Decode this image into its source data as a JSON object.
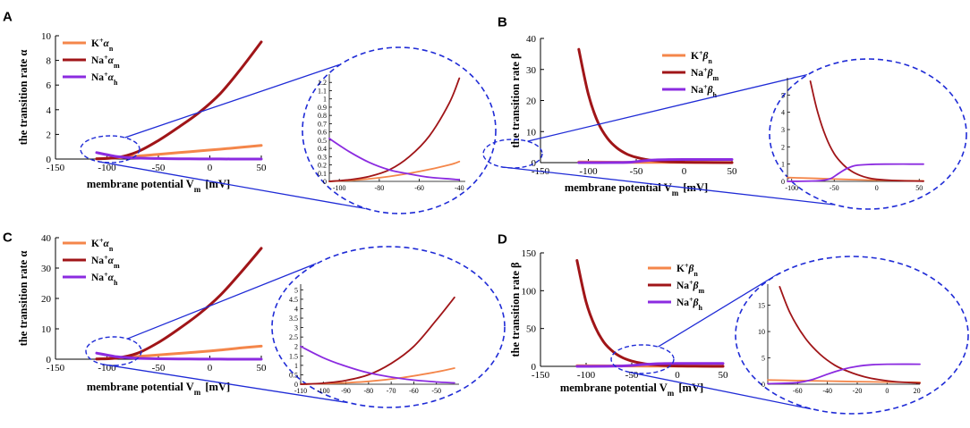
{
  "colors": {
    "k_n": "#f4864a",
    "na_m": "#a01518",
    "na_h": "#8b2be0",
    "zoom": "#1f2bd6",
    "axis": "#000000"
  },
  "chart_data": [
    {
      "panel": "A",
      "type": "line",
      "ylabel": "the transition rate α",
      "xlabel": "membrane potential V_m [mV]",
      "xlim": [
        -150,
        50
      ],
      "ylim": [
        0,
        10
      ],
      "xticks": [
        -150,
        -100,
        -50,
        0,
        50
      ],
      "yticks": [
        0,
        2,
        4,
        6,
        8,
        10
      ],
      "legend_position": "top-left",
      "series": [
        {
          "key": "k_n",
          "legend_main": "K",
          "legend_sup": "+",
          "legend_greek": "α",
          "legend_sub": "n",
          "x": [
            -110,
            -90,
            -70,
            -50,
            -30,
            -10,
            10,
            30,
            50
          ],
          "y": [
            0.03,
            0.1,
            0.25,
            0.38,
            0.52,
            0.66,
            0.8,
            0.95,
            1.1
          ]
        },
        {
          "key": "na_m",
          "legend_main": "Na",
          "legend_sup": "+",
          "legend_greek": "α",
          "legend_sub": "m",
          "x": [
            -110,
            -90,
            -70,
            -50,
            -30,
            -10,
            10,
            30,
            50
          ],
          "y": [
            0.02,
            0.12,
            0.6,
            1.5,
            2.6,
            3.8,
            5.3,
            7.3,
            9.5
          ]
        },
        {
          "key": "na_h",
          "legend_main": "Na",
          "legend_sup": "+",
          "legend_greek": "α",
          "legend_sub": "h",
          "x": [
            -110,
            -90,
            -70,
            -50,
            -30,
            -10,
            10,
            30,
            50
          ],
          "y": [
            0.52,
            0.2,
            0.08,
            0.04,
            0.02,
            0.01,
            0.01,
            0.0,
            0.0
          ]
        }
      ],
      "inset": {
        "xlim": [
          -105,
          -37
        ],
        "ylim": [
          0,
          1.3
        ],
        "xticks": [
          -100,
          -80,
          -60,
          -40
        ],
        "yticks": [
          0,
          0.1,
          0.2,
          0.3,
          0.4,
          0.5,
          0.6,
          0.7,
          0.8,
          0.9,
          1,
          1.1,
          1.2
        ],
        "series": [
          {
            "key": "k_n",
            "x": [
              -105,
              -90,
              -75,
              -60,
              -45,
              -40
            ],
            "y": [
              0.0,
              0.02,
              0.06,
              0.12,
              0.2,
              0.24
            ]
          },
          {
            "key": "na_m",
            "x": [
              -105,
              -95,
              -85,
              -75,
              -65,
              -55,
              -45,
              -40
            ],
            "y": [
              0.0,
              0.02,
              0.06,
              0.14,
              0.3,
              0.55,
              0.95,
              1.25
            ]
          },
          {
            "key": "na_h",
            "x": [
              -105,
              -95,
              -85,
              -75,
              -65,
              -55,
              -45,
              -40
            ],
            "y": [
              0.52,
              0.36,
              0.23,
              0.14,
              0.09,
              0.05,
              0.03,
              0.02
            ]
          }
        ]
      }
    },
    {
      "panel": "B",
      "type": "line",
      "ylabel": "the transition rate β",
      "xlabel": "membrane potential V_m [mV]",
      "xlim": [
        -150,
        50
      ],
      "ylim": [
        0,
        40
      ],
      "xticks": [
        -150,
        -100,
        -50,
        0,
        50
      ],
      "yticks": [
        0,
        10,
        20,
        30,
        40
      ],
      "legend_position": "top-center",
      "series": [
        {
          "key": "k_n",
          "legend_main": "K",
          "legend_sup": "+",
          "legend_greek": "β",
          "legend_sub": "n",
          "x": [
            -110,
            -80,
            -50,
            -20,
            10,
            50
          ],
          "y": [
            0.2,
            0.15,
            0.1,
            0.08,
            0.05,
            0.03
          ]
        },
        {
          "key": "na_m",
          "legend_main": "Na",
          "legend_sup": "+",
          "legend_greek": "β",
          "legend_sub": "m",
          "x": [
            -110,
            -100,
            -90,
            -80,
            -70,
            -60,
            -50,
            -40,
            -30,
            -10,
            20,
            50
          ],
          "y": [
            36.5,
            22,
            13,
            7.8,
            4.7,
            2.8,
            1.7,
            1.0,
            0.6,
            0.2,
            0.05,
            0.01
          ]
        },
        {
          "key": "na_h",
          "legend_main": "Na",
          "legend_sup": "+",
          "legend_greek": "β",
          "legend_sub": "h",
          "x": [
            -110,
            -70,
            -55,
            -45,
            -35,
            -20,
            0,
            50
          ],
          "y": [
            0.0,
            0.02,
            0.15,
            0.5,
            0.8,
            0.95,
            1.0,
            1.0
          ]
        }
      ],
      "inset": {
        "xlim": [
          -105,
          55
        ],
        "ylim": [
          0,
          6
        ],
        "xticks": [
          -100,
          -50,
          0,
          50
        ],
        "yticks": [
          0,
          1,
          2,
          3,
          4,
          5
        ],
        "series": [
          {
            "key": "k_n",
            "x": [
              -105,
              -70,
              -40,
              -10,
              20,
              55
            ],
            "y": [
              0.22,
              0.17,
              0.12,
              0.08,
              0.05,
              0.03
            ]
          },
          {
            "key": "na_m",
            "x": [
              -78,
              -70,
              -60,
              -50,
              -40,
              -30,
              -20,
              -10,
              0,
              20,
              55
            ],
            "y": [
              5.8,
              4.1,
              2.6,
              1.6,
              1.0,
              0.6,
              0.35,
              0.2,
              0.12,
              0.05,
              0.01
            ]
          },
          {
            "key": "na_h",
            "x": [
              -105,
              -70,
              -55,
              -45,
              -35,
              -25,
              -10,
              10,
              55
            ],
            "y": [
              0.0,
              0.03,
              0.15,
              0.45,
              0.75,
              0.92,
              0.98,
              1.0,
              1.0
            ]
          }
        ]
      }
    },
    {
      "panel": "C",
      "type": "line",
      "ylabel": "the transition rate α",
      "xlabel": "membrane potential V_m [mV]",
      "xlim": [
        -150,
        50
      ],
      "ylim": [
        0,
        40
      ],
      "xticks": [
        -150,
        -100,
        -50,
        0,
        50
      ],
      "yticks": [
        0,
        10,
        20,
        30,
        40
      ],
      "legend_position": "top-left",
      "series": [
        {
          "key": "k_n",
          "legend_main": "K",
          "legend_sup": "+",
          "legend_greek": "α",
          "legend_sub": "n",
          "x": [
            -110,
            -90,
            -70,
            -50,
            -30,
            -10,
            10,
            30,
            50
          ],
          "y": [
            0.1,
            0.4,
            0.9,
            1.4,
            1.9,
            2.4,
            3.0,
            3.7,
            4.3
          ]
        },
        {
          "key": "na_m",
          "legend_main": "Na",
          "legend_sup": "+",
          "legend_greek": "α",
          "legend_sub": "m",
          "x": [
            -110,
            -90,
            -70,
            -50,
            -30,
            -10,
            10,
            30,
            50
          ],
          "y": [
            0.05,
            0.4,
            2.0,
            5.5,
            10.0,
            15.0,
            21.0,
            28.5,
            36.5
          ]
        },
        {
          "key": "na_h",
          "legend_main": "Na",
          "legend_sup": "+",
          "legend_greek": "α",
          "legend_sub": "h",
          "x": [
            -110,
            -90,
            -70,
            -50,
            -30,
            -10,
            10,
            30,
            50
          ],
          "y": [
            2.0,
            0.8,
            0.3,
            0.15,
            0.08,
            0.04,
            0.02,
            0.0,
            0.0
          ]
        }
      ],
      "inset": {
        "xlim": [
          -110,
          -40
        ],
        "ylim": [
          0,
          5.3
        ],
        "xticks": [
          -110,
          -100,
          -90,
          -80,
          -70,
          -60,
          -50
        ],
        "yticks": [
          0,
          0.5,
          1,
          1.5,
          2,
          2.5,
          3,
          3.5,
          4,
          4.5,
          5
        ],
        "series": [
          {
            "key": "k_n",
            "x": [
              -110,
              -95,
              -80,
              -65,
              -50,
              -42
            ],
            "y": [
              0.0,
              0.05,
              0.15,
              0.35,
              0.65,
              0.85
            ]
          },
          {
            "key": "na_m",
            "x": [
              -110,
              -100,
              -90,
              -80,
              -70,
              -60,
              -50,
              -42
            ],
            "y": [
              0.0,
              0.05,
              0.2,
              0.5,
              1.1,
              2.0,
              3.4,
              4.6
            ]
          },
          {
            "key": "na_h",
            "x": [
              -110,
              -100,
              -90,
              -80,
              -70,
              -60,
              -50,
              -42
            ],
            "y": [
              2.0,
              1.4,
              0.95,
              0.6,
              0.38,
              0.22,
              0.12,
              0.07
            ]
          }
        ]
      }
    },
    {
      "panel": "D",
      "type": "line",
      "ylabel": "the transition rate β",
      "xlabel": "membrane potential V_m [mV]",
      "xlim": [
        -150,
        50
      ],
      "ylim": [
        0,
        150
      ],
      "xticks": [
        -150,
        -100,
        -50,
        0,
        50
      ],
      "yticks": [
        0,
        50,
        100,
        150
      ],
      "legend_position": "top-center",
      "series": [
        {
          "key": "k_n",
          "legend_main": "K",
          "legend_sup": "+",
          "legend_greek": "β",
          "legend_sub": "n",
          "x": [
            -110,
            -70,
            -30,
            10,
            50
          ],
          "y": [
            0.8,
            0.6,
            0.4,
            0.3,
            0.2
          ]
        },
        {
          "key": "na_m",
          "legend_main": "Na",
          "legend_sup": "+",
          "legend_greek": "β",
          "legend_sub": "m",
          "x": [
            -110,
            -100,
            -90,
            -80,
            -70,
            -60,
            -50,
            -40,
            -30,
            -10,
            20,
            50
          ],
          "y": [
            140,
            85,
            52,
            31,
            19,
            11.5,
            7,
            4.2,
            2.5,
            0.9,
            0.2,
            0.05
          ]
        },
        {
          "key": "na_h",
          "legend_main": "Na",
          "legend_sup": "+",
          "legend_greek": "β",
          "legend_sub": "h",
          "x": [
            -110,
            -70,
            -50,
            -40,
            -30,
            -20,
            0,
            50
          ],
          "y": [
            0.0,
            0.2,
            1.2,
            2.2,
            3.0,
            3.5,
            3.8,
            3.8
          ]
        }
      ],
      "inset": {
        "xlim": [
          -80,
          22
        ],
        "ylim": [
          0,
          19
        ],
        "xticks": [
          -60,
          -40,
          -20,
          0,
          20
        ],
        "yticks": [
          0,
          5,
          10,
          15
        ],
        "series": [
          {
            "key": "k_n",
            "x": [
              -80,
              -60,
              -40,
              -20,
              0,
              22
            ],
            "y": [
              0.8,
              0.7,
              0.6,
              0.5,
              0.4,
              0.35
            ]
          },
          {
            "key": "na_m",
            "x": [
              -72,
              -65,
              -55,
              -45,
              -35,
              -25,
              -15,
              -5,
              5,
              22
            ],
            "y": [
              18.5,
              13.5,
              8.8,
              5.7,
              3.6,
              2.3,
              1.4,
              0.85,
              0.5,
              0.2
            ]
          },
          {
            "key": "na_h",
            "x": [
              -80,
              -60,
              -50,
              -40,
              -30,
              -20,
              -10,
              0,
              22
            ],
            "y": [
              0.1,
              0.3,
              0.9,
              1.9,
              2.8,
              3.4,
              3.7,
              3.8,
              3.8
            ]
          }
        ]
      }
    }
  ]
}
